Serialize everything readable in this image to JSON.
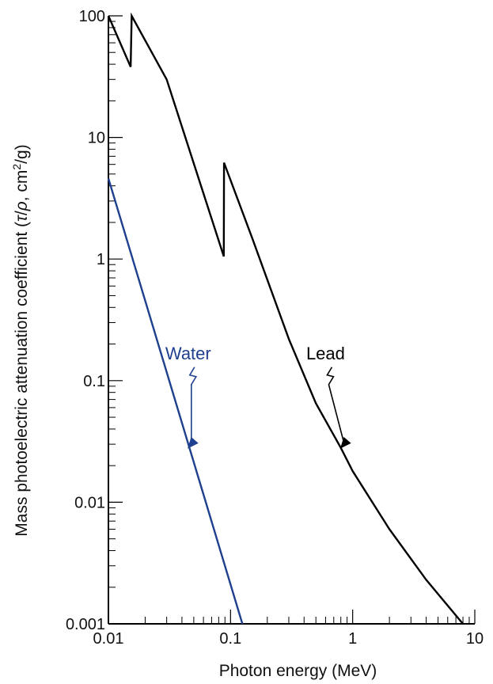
{
  "chart_data": {
    "type": "line",
    "xlabel": "Photon energy (MeV)",
    "ylabel_parts": {
      "prefix": "Mass photoelectric attenuation coefficient (",
      "tau": "τ",
      "slash": "/",
      "rho": "ρ",
      "unit": ", cm",
      "sup": "2",
      "suffix": "/g)"
    },
    "x_scale": "log",
    "y_scale": "log",
    "xlim": [
      0.01,
      10
    ],
    "ylim": [
      0.001,
      100
    ],
    "x_ticks": [
      {
        "value": 0.01,
        "label": "0.01"
      },
      {
        "value": 0.1,
        "label": "0.1"
      },
      {
        "value": 1,
        "label": "1"
      },
      {
        "value": 10,
        "label": "10"
      }
    ],
    "y_ticks": [
      {
        "value": 0.001,
        "label": "0.001"
      },
      {
        "value": 0.01,
        "label": "0.01"
      },
      {
        "value": 0.1,
        "label": "0.1"
      },
      {
        "value": 1,
        "label": "1"
      },
      {
        "value": 10,
        "label": "10"
      },
      {
        "value": 100,
        "label": "100"
      }
    ],
    "grid": false,
    "series": [
      {
        "name": "Lead",
        "color": "#000000",
        "points": [
          [
            0.01,
            100
          ],
          [
            0.0152,
            38
          ],
          [
            0.0155,
            100
          ],
          [
            0.03,
            30
          ],
          [
            0.088,
            1.05
          ],
          [
            0.0885,
            6.2
          ],
          [
            0.15,
            1.5
          ],
          [
            0.3,
            0.22
          ],
          [
            0.5,
            0.065
          ],
          [
            0.8,
            0.028
          ],
          [
            1,
            0.018
          ],
          [
            2,
            0.006
          ],
          [
            4,
            0.0023
          ],
          [
            8,
            0.001
          ]
        ],
        "label_at": [
          0.6,
          0.15
        ],
        "arrow_tip": [
          0.8,
          0.028
        ]
      },
      {
        "name": "Water",
        "color": "#1f3f8f",
        "points": [
          [
            0.01,
            4.6
          ],
          [
            0.125,
            0.001
          ]
        ],
        "label_at": [
          0.045,
          0.15
        ],
        "arrow_tip": [
          0.045,
          0.028
        ]
      }
    ]
  }
}
